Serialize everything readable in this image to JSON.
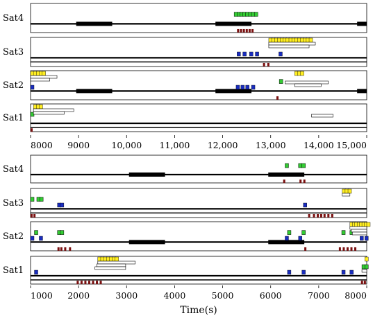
{
  "chart_data": [
    {
      "type": "timeline",
      "xlim": [
        8000,
        15000
      ],
      "tick_values": [
        8000,
        9000,
        10000,
        11000,
        12000,
        13000,
        14000,
        15000
      ],
      "tick_labels": [
        "8000",
        "9000",
        "10,000",
        "11,000",
        "12,000",
        "13,000",
        "14,000",
        "15,000"
      ],
      "xlabel": "",
      "lanes": [
        {
          "name": "Sat4",
          "black_segments": [
            [
              8950,
              9700
            ],
            [
              11850,
              12600
            ],
            [
              14800,
              15000
            ]
          ],
          "green": [
            12240,
            12300,
            12360,
            12420,
            12480,
            12540,
            12600,
            12660
          ],
          "blue": [],
          "red": [
            12300,
            12360,
            12420,
            12480,
            12540,
            12600
          ],
          "yellow": [],
          "white_bars": []
        },
        {
          "name": "Sat3",
          "black_segments": [],
          "green": [],
          "blue": [
            12300,
            12420,
            12560,
            12680,
            13170
          ],
          "red": [
            12840,
            12930
          ],
          "yellow": [
            12960,
            13020,
            13080,
            13140,
            13200,
            13260,
            13320,
            13380,
            13440,
            13500,
            13560,
            13620,
            13680,
            13740,
            13800
          ],
          "white_bars": [
            [
              12960,
              13930
            ],
            [
              12960,
              13800
            ]
          ]
        },
        {
          "name": "Sat2",
          "black_segments": [
            [
              8950,
              9700
            ],
            [
              11850,
              12600
            ],
            [
              14800,
              15000
            ]
          ],
          "green": [
            13180
          ],
          "blue": [
            8000,
            12280,
            12380,
            12480,
            12600
          ],
          "red": [
            13120
          ],
          "yellow": [
            8000,
            8060,
            8120,
            8180,
            8240,
            13500,
            13560,
            13620
          ],
          "white_bars": [
            [
              8000,
              8550
            ],
            [
              8000,
              8400
            ],
            [
              13300,
              14200
            ],
            [
              13500,
              14050
            ]
          ]
        },
        {
          "name": "Sat1",
          "black_segments": [],
          "green": [
            8000
          ],
          "blue": [],
          "red": [
            8000
          ],
          "yellow": [
            8060,
            8120,
            8180
          ],
          "white_bars": [
            [
              8060,
              8900
            ],
            [
              8060,
              8700
            ],
            [
              13850,
              14300
            ]
          ]
        }
      ]
    },
    {
      "type": "timeline",
      "xlim": [
        1000,
        8000
      ],
      "tick_values": [
        1000,
        2000,
        3000,
        4000,
        5000,
        6000,
        7000,
        8000
      ],
      "tick_labels": [
        "1000",
        "2000",
        "3000",
        "4000",
        "5000",
        "6000",
        "7000",
        "8000"
      ],
      "xlabel": "Time(s)",
      "lanes": [
        {
          "name": "Sat4",
          "black_segments": [
            [
              3050,
              3800
            ],
            [
              5950,
              6700
            ]
          ],
          "green": [
            6300,
            6580,
            6650
          ],
          "blue": [],
          "red": [
            6260,
            6600,
            6680
          ],
          "yellow": [],
          "white_bars": []
        },
        {
          "name": "Sat3",
          "black_segments": [],
          "green": [
            1000,
            1130,
            1190
          ],
          "blue": [
            1560,
            1620,
            6680
          ],
          "red": [
            1000,
            1060,
            6780,
            6880,
            6960,
            7030,
            7100,
            7180,
            7260
          ],
          "yellow": [
            7490,
            7550,
            7610
          ],
          "white_bars": [
            [
              7490,
              7650
            ]
          ]
        },
        {
          "name": "Sat2",
          "black_segments": [
            [
              3050,
              3800
            ],
            [
              5950,
              6700
            ]
          ],
          "green": [
            1080,
            1560,
            1620,
            6350,
            6650,
            7480,
            7650
          ],
          "blue": [
            1000,
            1180,
            6300,
            6580,
            7860,
            7960
          ],
          "red": [
            1560,
            1620,
            1700,
            1800,
            6700,
            7420,
            7500,
            7580,
            7660,
            7740
          ],
          "yellow": [
            7650,
            7700,
            7750,
            7800,
            7850,
            7900,
            7950,
            8000
          ],
          "white_bars": [
            [
              7650,
              8000
            ],
            [
              7680,
              8000
            ],
            [
              7700,
              8000
            ]
          ]
        },
        {
          "name": "Sat1",
          "black_segments": [],
          "green": [
            7900,
            7960
          ],
          "blue": [
            1080,
            6350,
            6650,
            7480,
            7650
          ],
          "red": [
            1960,
            2040,
            2120,
            2200,
            2280,
            2360,
            2440,
            7880,
            7940
          ],
          "yellow": [
            2400,
            2460,
            2520,
            2580,
            2640,
            2700,
            2760,
            7960
          ],
          "white_bars": [
            [
              2400,
              3180
            ],
            [
              2380,
              2980
            ],
            [
              2340,
              2980
            ],
            [
              7900,
              8000
            ]
          ]
        }
      ]
    }
  ]
}
